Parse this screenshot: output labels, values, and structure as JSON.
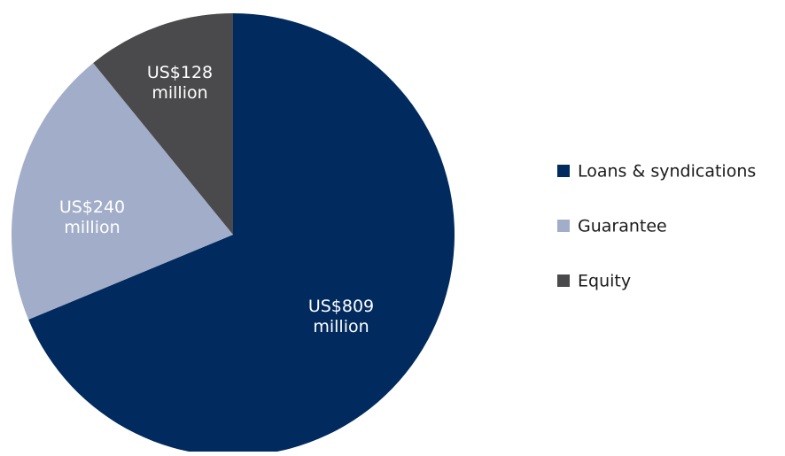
{
  "chart_data": {
    "type": "pie",
    "title": "",
    "unit": "US$ million",
    "slices": [
      {
        "name": "Loans & syndications",
        "value": 809,
        "color": "#012a5e",
        "label_lines": [
          "US$809",
          "million"
        ]
      },
      {
        "name": "Guarantee",
        "value": 240,
        "color": "#a2aec9",
        "label_lines": [
          "US$240",
          "million"
        ]
      },
      {
        "name": "Equity",
        "value": 128,
        "color": "#4a4a4c",
        "label_lines": [
          "US$128",
          "million"
        ]
      }
    ],
    "legend": {
      "position": "right",
      "entries": [
        "Loans & syndications",
        "Guarantee",
        "Equity"
      ]
    }
  }
}
